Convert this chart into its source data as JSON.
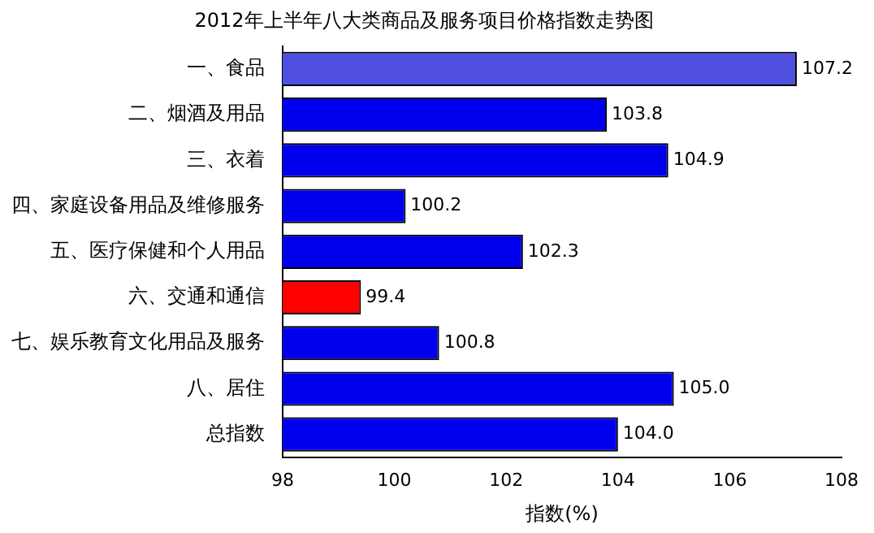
{
  "chart_data": {
    "type": "bar",
    "orientation": "horizontal",
    "title": "2012年上半年八大类商品及服务项目价格指数走势图",
    "xlabel": "指数(%)",
    "categories": [
      "一、食品",
      "二、烟酒及用品",
      "三、衣着",
      "四、家庭设备用品及维修服务",
      "五、医疗保健和个人用品",
      "六、交通和通信",
      "七、娱乐教育文化用品及服务",
      "八、居住",
      "总指数"
    ],
    "values": [
      107.2,
      103.8,
      104.9,
      100.2,
      102.3,
      99.4,
      100.8,
      105.0,
      104.0
    ],
    "colors": [
      "#5050e0",
      "#0000ee",
      "#0000ee",
      "#0000ee",
      "#0000ee",
      "#ff0000",
      "#0000ee",
      "#0000ee",
      "#0000ee"
    ],
    "value_labels": [
      "107.2",
      "103.8",
      "104.9",
      "100.2",
      "102.3",
      "99.4",
      "100.8",
      "105.0",
      "104.0"
    ],
    "xlim": [
      98,
      108
    ],
    "xticks": [
      98,
      100,
      102,
      104,
      106,
      108
    ],
    "grid": false,
    "legend": false
  }
}
